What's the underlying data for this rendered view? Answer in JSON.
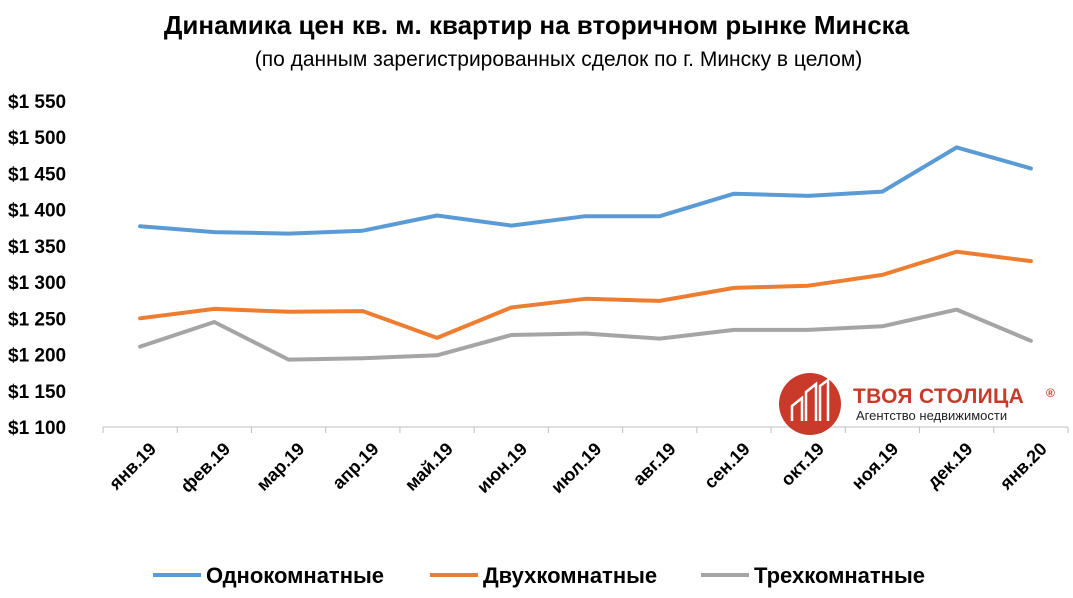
{
  "chart_data": {
    "type": "line",
    "title": "Динамика цен кв. м. квартир на вторичном рынке Минска",
    "subtitle": "(по данным зарегистрированных сделок по г. Минску в целом)",
    "xlabel": "",
    "ylabel": "",
    "categories": [
      "янв.19",
      "фев.19",
      "мар.19",
      "апр.19",
      "май.19",
      "июн.19",
      "июл.19",
      "авг.19",
      "сен.19",
      "окт.19",
      "ноя.19",
      "дек.19",
      "янв.20"
    ],
    "yticks": [
      1100,
      1150,
      1200,
      1250,
      1300,
      1350,
      1400,
      1450,
      1500,
      1550
    ],
    "ytick_labels": [
      "$1 100",
      "$1 150",
      "$1 200",
      "$1 250",
      "$1 300",
      "$1 350",
      "$1 400",
      "$1 450",
      "$1 500",
      "$1 550"
    ],
    "ylim": [
      1100,
      1550
    ],
    "grid": false,
    "legend_position": "bottom",
    "series": [
      {
        "name": "Однокомнатные",
        "color": "#5b9bd5",
        "values": [
          1377,
          1369,
          1367,
          1371,
          1392,
          1378,
          1391,
          1391,
          1422,
          1419,
          1425,
          1486,
          1457
        ]
      },
      {
        "name": "Двухкомнатные",
        "color": "#ed7d31",
        "values": [
          1250,
          1263,
          1259,
          1260,
          1223,
          1265,
          1277,
          1274,
          1292,
          1295,
          1310,
          1342,
          1329
        ]
      },
      {
        "name": "Трехкомнатные",
        "color": "#a5a5a5",
        "values": [
          1211,
          1245,
          1193,
          1195,
          1199,
          1227,
          1229,
          1222,
          1234,
          1234,
          1239,
          1262,
          1219
        ]
      }
    ]
  },
  "brand": {
    "name": "ТВОЯ СТОЛИЦА",
    "reg_mark": "®",
    "tagline": "Агентство недвижимости",
    "color": "#c93a2a"
  }
}
